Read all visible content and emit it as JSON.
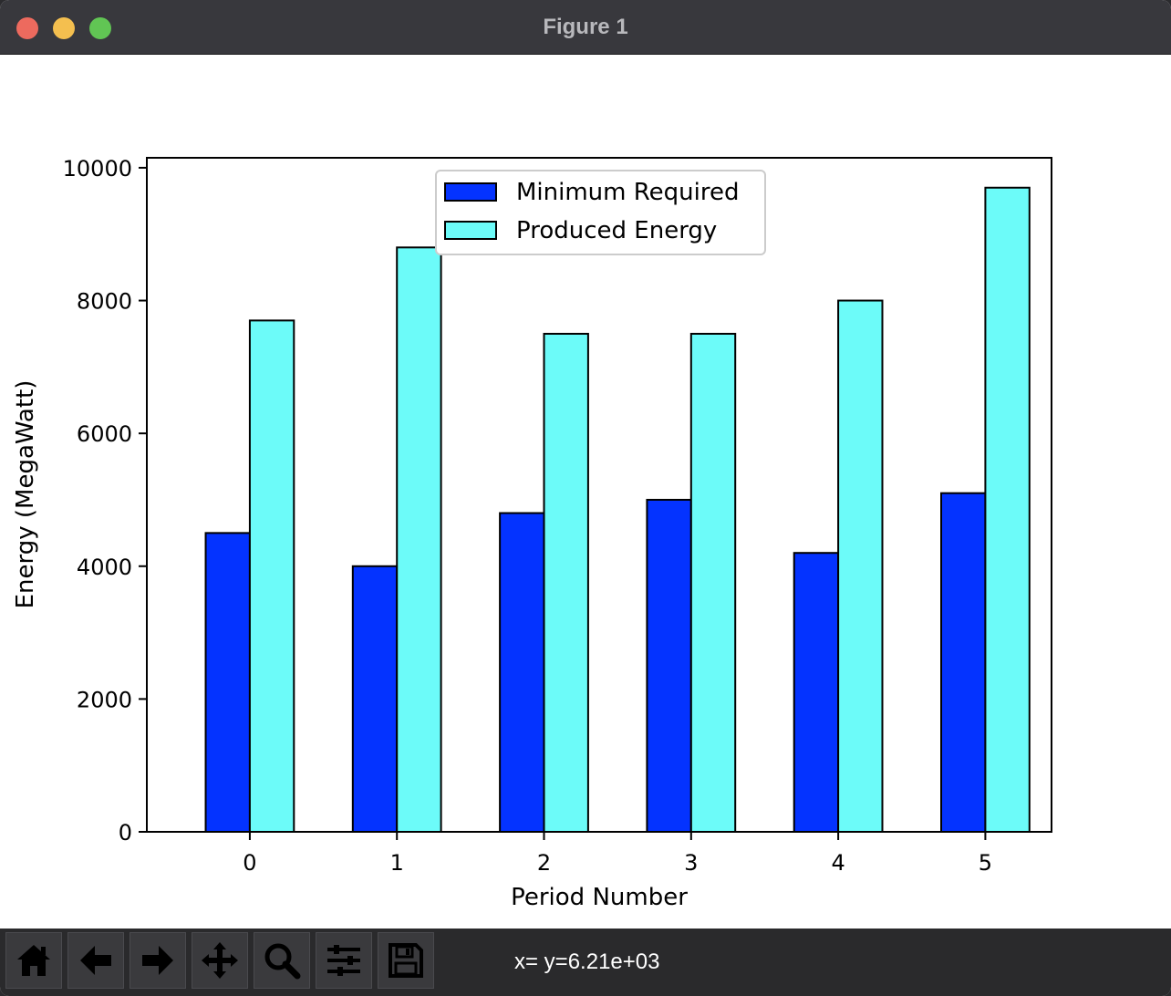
{
  "window": {
    "title": "Figure 1"
  },
  "toolbar": {
    "buttons": [
      {
        "icon": "home-icon"
      },
      {
        "icon": "back-arrow-icon"
      },
      {
        "icon": "forward-arrow-icon"
      },
      {
        "icon": "pan-icon"
      },
      {
        "icon": "zoom-icon"
      },
      {
        "icon": "sliders-icon"
      },
      {
        "icon": "save-icon"
      }
    ],
    "coords": "x= y=6.21e+03"
  },
  "chart_data": {
    "type": "bar",
    "categories": [
      "0",
      "1",
      "2",
      "3",
      "4",
      "5"
    ],
    "series": [
      {
        "name": "Minimum Required",
        "values": [
          4500,
          4000,
          4800,
          5000,
          4200,
          5100
        ],
        "color": "#0433ff"
      },
      {
        "name": "Produced Energy",
        "values": [
          7700,
          8800,
          7500,
          7500,
          8000,
          9700
        ],
        "color": "#6cfbf9"
      }
    ],
    "xlabel": "Period Number",
    "ylabel": "Energy (MegaWatt)",
    "ylim": [
      0,
      10150
    ],
    "yticks": [
      0,
      2000,
      4000,
      6000,
      8000,
      10000
    ],
    "legend": "upper center",
    "grid": false
  }
}
